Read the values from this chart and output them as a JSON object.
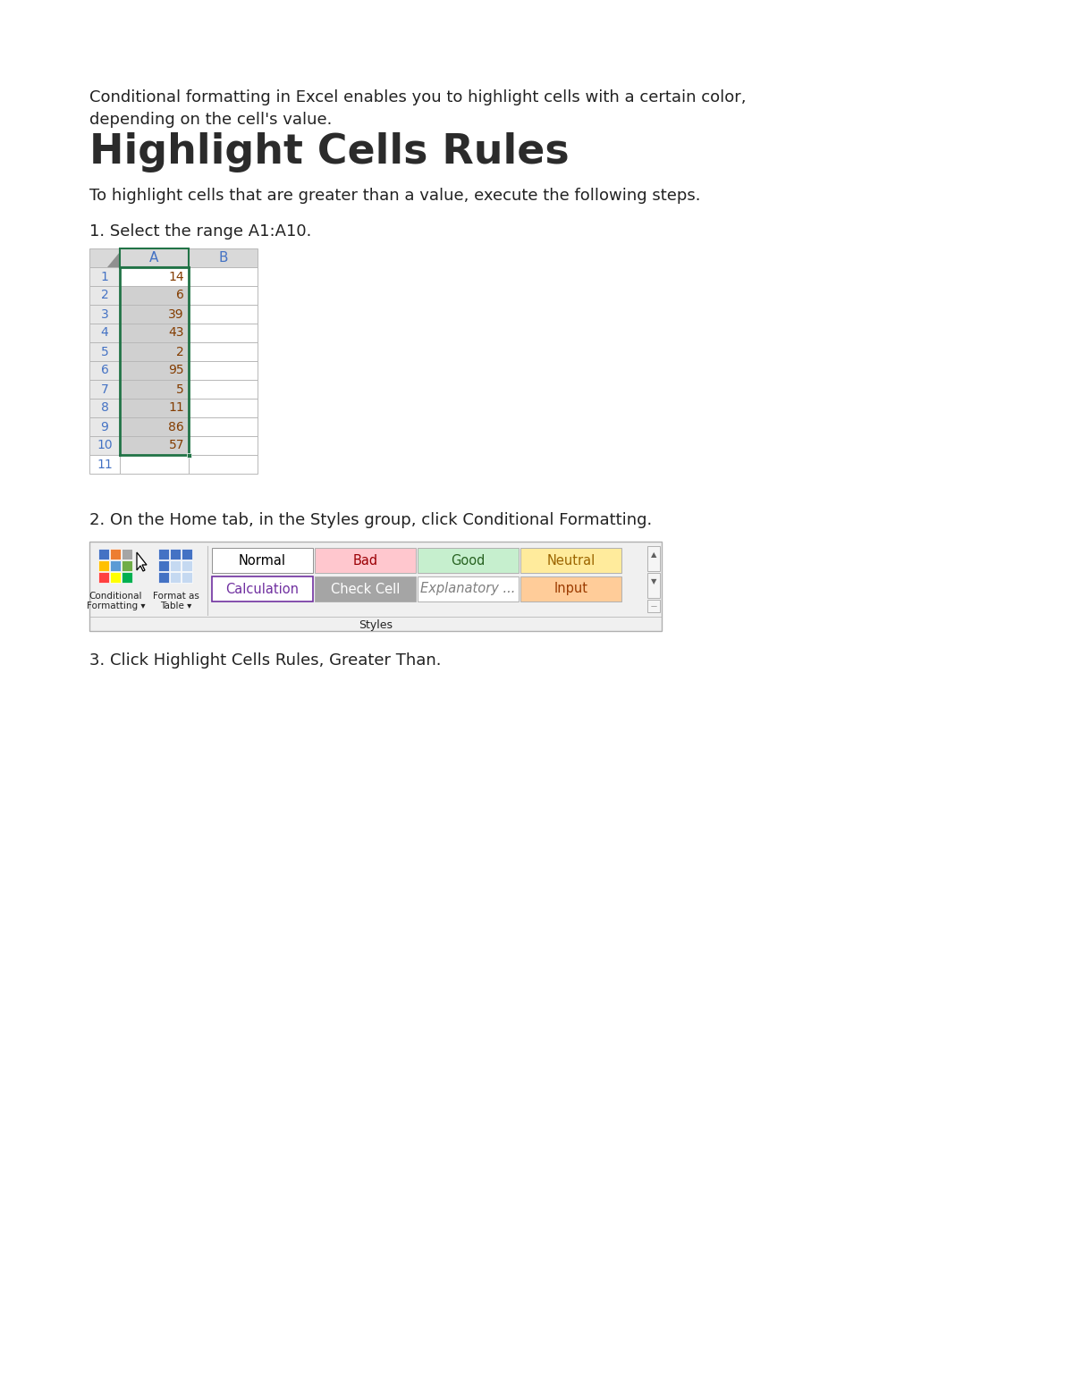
{
  "bg_color": "#ffffff",
  "intro_text_line1": "Conditional formatting in Excel enables you to highlight cells with a certain color,",
  "intro_text_line2": "depending on the cell's value.",
  "title": "Highlight Cells Rules",
  "step1_desc": "To highlight cells that are greater than a value, execute the following steps.",
  "step1_label": "1. Select the range A1:A10.",
  "step2_label": "2. On the Home tab, in the Styles group, click Conditional Formatting.",
  "step3_label": "3. Click Highlight Cells Rules, Greater Than.",
  "table_values": [
    14,
    6,
    39,
    43,
    2,
    95,
    5,
    11,
    86,
    57
  ],
  "col_header_bg": "#d9d9d9",
  "row_header_bg": "#e8e8e8",
  "cell_a_row1_bg": "#ffffff",
  "cell_a_other_bg": "#d0d0d0",
  "cell_b_bg": "#ffffff",
  "selection_border_color": "#217346",
  "row_num_color": "#4472c4",
  "col_letter_color": "#4472c4",
  "value_color": "#833c00",
  "grid_color": "#b8b8b8",
  "styles_panel_bg": "#f0f0f0",
  "styles_panel_border": "#b0b0b0",
  "normal_bg": "#ffffff",
  "normal_text": "#000000",
  "bad_bg": "#ffc7ce",
  "bad_text": "#9c0006",
  "good_bg": "#c6efce",
  "good_text": "#276221",
  "neutral_bg": "#ffeb9c",
  "neutral_text": "#9c6500",
  "calculation_bg": "#ffffff",
  "calculation_text": "#7030a0",
  "calculation_border": "#7030a0",
  "checkcell_bg": "#a5a5a5",
  "checkcell_text": "#ffffff",
  "explanatory_bg": "#ffffff",
  "explanatory_text": "#808080",
  "input_bg": "#ffcc99",
  "input_text": "#9c3c00",
  "styles_label": "Styles",
  "text_color": "#222222",
  "title_color": "#2b2b2b"
}
